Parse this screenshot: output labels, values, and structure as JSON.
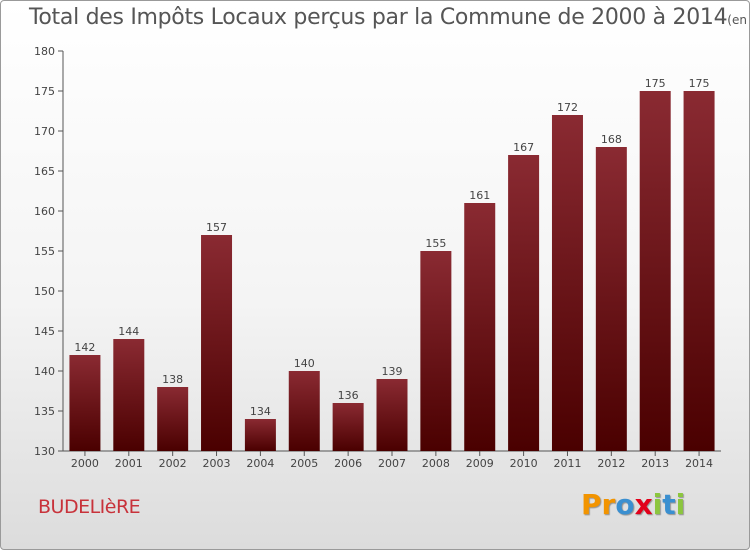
{
  "chart_data": {
    "type": "bar",
    "title": "Total des Impôts Locaux perçus par la Commune de 2000 à 2014",
    "title_unit": "(en milliers d'€)",
    "categories": [
      "2000",
      "2001",
      "2002",
      "2003",
      "2004",
      "2005",
      "2006",
      "2007",
      "2008",
      "2009",
      "2010",
      "2011",
      "2012",
      "2013",
      "2014"
    ],
    "values": [
      142,
      144,
      138,
      157,
      134,
      140,
      136,
      139,
      155,
      161,
      167,
      172,
      168,
      175,
      175
    ],
    "ylim": [
      130,
      180
    ],
    "yticks": [
      130,
      135,
      140,
      145,
      150,
      155,
      160,
      165,
      170,
      175,
      180
    ],
    "grid": false,
    "bar_color_top": "#8a2a32",
    "bar_color_bottom": "#4a0000"
  },
  "footer": {
    "commune": "BUDELIèRE",
    "logo_letters": [
      {
        "ch": "P",
        "color": "#f29400"
      },
      {
        "ch": "r",
        "color": "#f29400"
      },
      {
        "ch": "o",
        "color": "#3a8fd0"
      },
      {
        "ch": "x",
        "color": "#e2001a"
      },
      {
        "ch": "i",
        "color": "#8cc63e"
      },
      {
        "ch": "t",
        "color": "#3a8fd0"
      },
      {
        "ch": "i",
        "color": "#8cc63e"
      }
    ]
  }
}
